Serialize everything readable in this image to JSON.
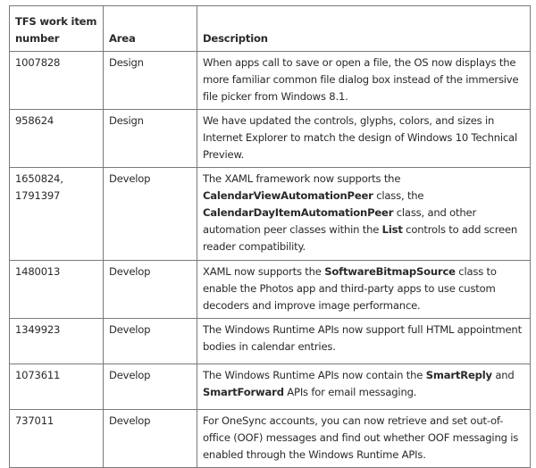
{
  "table": {
    "headers": [
      "TFS work item number",
      "Area",
      "Description"
    ],
    "rows": [
      {
        "number": "1007828",
        "area": "Design",
        "description": [
          {
            "text": "When apps call to save or open a file, the OS now displays the more familiar common file dialog box instead of the immersive file picker from Windows 8.1.",
            "bold": false
          }
        ]
      },
      {
        "number": "958624",
        "area": "Design",
        "description": [
          {
            "text": "We have updated the controls, glyphs, colors, and sizes in Internet Explorer to match the design of Windows 10 Technical Preview.",
            "bold": false
          }
        ]
      },
      {
        "number": "1650824, 1791397",
        "area": "Develop",
        "description": [
          {
            "text": "The XAML framework now supports the ",
            "bold": false
          },
          {
            "text": "CalendarViewAutomationPeer",
            "bold": true
          },
          {
            "text": " class, the ",
            "bold": false
          },
          {
            "text": "CalendarDayItemAutomationPeer",
            "bold": true
          },
          {
            "text": " class, and other automation peer classes within the ",
            "bold": false
          },
          {
            "text": "List",
            "bold": true
          },
          {
            "text": " controls to add screen reader compatibility.",
            "bold": false
          }
        ]
      },
      {
        "number": "1480013",
        "area": "Develop",
        "description": [
          {
            "text": "XAML now supports the ",
            "bold": false
          },
          {
            "text": "SoftwareBitmapSource",
            "bold": true
          },
          {
            "text": " class to enable the Photos app and third-party apps to use custom decoders and improve image performance.",
            "bold": false
          }
        ]
      },
      {
        "number": "1349923",
        "area": "Develop",
        "description": [
          {
            "text": "The Windows Runtime APIs now support full HTML appointment bodies in calendar entries.",
            "bold": false
          }
        ]
      },
      {
        "number": "1073611",
        "area": "Develop",
        "description": [
          {
            "text": "The Windows Runtime APIs now contain the ",
            "bold": false
          },
          {
            "text": "SmartReply",
            "bold": true
          },
          {
            "text": " and ",
            "bold": false
          },
          {
            "text": "SmartForward",
            "bold": true
          },
          {
            "text": " APIs for email messaging.",
            "bold": false
          }
        ]
      },
      {
        "number": "737011",
        "area": "Develop",
        "description": [
          {
            "text": "For OneSync accounts, you can now retrieve and set out-of-office (OOF) messages and find out whether OOF messaging is enabled through the Windows Runtime APIs.",
            "bold": false
          }
        ]
      }
    ]
  }
}
